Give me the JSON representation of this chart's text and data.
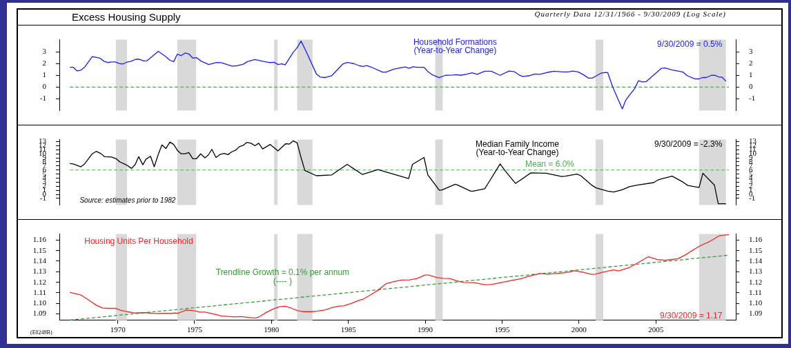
{
  "chart_data": [
    {
      "type": "line",
      "title": "Excess Housing Supply",
      "subtitle": "Quarterly Data 12/31/1966 - 9/30/2009 (Log Scale)",
      "series": [
        {
          "name": "Household Formations",
          "color": "#1a1aff",
          "x": [
            1966.88,
            1967.1,
            1967.35,
            1967.6,
            1967.84,
            1968.34,
            1968.84,
            1969.1,
            1969.34,
            1969.6,
            1969.84,
            1970.09,
            1970.34,
            1970.59,
            1970.84,
            1971.17,
            1971.39,
            1971.68,
            1971.89,
            1972.26,
            1972.63,
            1973.09,
            1973.39,
            1973.64,
            1973.87,
            1974.12,
            1974.38,
            1974.62,
            1974.89,
            1975.12,
            1975.43,
            1975.92,
            1976.42,
            1976.76,
            1977.42,
            1977.76,
            1978.17,
            1978.43,
            1978.92,
            1979.42,
            1979.84,
            1980.17,
            1980.42,
            1980.67,
            1980.89,
            1981.42,
            1981.67,
            1981.92,
            1982.17,
            1982.92,
            1983.17,
            1983.5,
            1983.92,
            1984.67,
            1984.95,
            1985.34,
            1985.72,
            1985.96,
            1986.2,
            1986.5,
            1987.22,
            1987.45,
            1987.95,
            1988.45,
            1988.7,
            1988.95,
            1989.2,
            1989.45,
            1989.92,
            1990.2,
            1990.45,
            1990.9,
            1991.32,
            1991.79,
            1992.04,
            1992.29,
            1992.7,
            1993.04,
            1993.37,
            1993.87,
            1994.29,
            1994.87,
            1995.45,
            1995.78,
            1996.12,
            1996.36,
            1996.78,
            1997.12,
            1997.45,
            1997.95,
            1998.37,
            1998.95,
            1999.28,
            1999.62,
            1999.95,
            2000.28,
            2000.62,
            2000.86,
            2001.11,
            2001.45,
            2001.7,
            2001.87,
            2002.2,
            2002.53,
            2002.82,
            2003.03,
            2003.29,
            2003.62,
            2003.87,
            2004.12,
            2004.37,
            2004.79,
            2005.36,
            2005.61,
            2006.03,
            2006.45,
            2006.78,
            2007.03,
            2007.53,
            2007.81,
            2008.03,
            2008.28,
            2008.62,
            2008.87,
            2009.12,
            2009.31,
            2009.56
          ],
          "values": [
            1.7,
            1.7,
            1.38,
            1.45,
            1.7,
            2.61,
            2.47,
            2.21,
            2.1,
            2.15,
            2.15,
            2.02,
            1.98,
            2.13,
            2.19,
            2.38,
            2.38,
            2.24,
            2.25,
            2.64,
            3.06,
            2.64,
            2.29,
            2.18,
            2.81,
            2.69,
            2.91,
            2.83,
            2.47,
            2.52,
            2.21,
            1.93,
            2.1,
            2.08,
            1.8,
            1.82,
            1.96,
            2.18,
            2.35,
            2.21,
            2.1,
            2.12,
            1.93,
            1.99,
            1.9,
            2.99,
            3.37,
            3.93,
            3.27,
            1.12,
            0.86,
            0.82,
            0.98,
            2.01,
            2.1,
            2.01,
            1.82,
            1.77,
            1.84,
            1.7,
            1.28,
            1.28,
            1.53,
            1.67,
            1.72,
            1.61,
            1.74,
            1.69,
            1.69,
            1.3,
            1.06,
            0.81,
            1.01,
            1.03,
            1.06,
            1.01,
            1.11,
            1.22,
            1.09,
            1.36,
            1.36,
            1.01,
            1.37,
            1.33,
            1.03,
            0.9,
            0.98,
            1.12,
            1.09,
            1.26,
            1.36,
            1.3,
            1.3,
            1.37,
            1.3,
            1.06,
            0.77,
            0.77,
            0.95,
            1.2,
            1.25,
            1.23,
            0.0,
            -1.0,
            -1.86,
            -1.15,
            -0.68,
            -0.13,
            0.55,
            0.44,
            0.47,
            0.95,
            1.61,
            1.63,
            1.47,
            1.37,
            1.28,
            0.98,
            0.71,
            0.7,
            0.82,
            0.82,
            1.01,
            1.0,
            0.85,
            0.85,
            0.5
          ]
        }
      ],
      "xlim": [
        1966.2,
        2010.2
      ],
      "xticks": [
        1970,
        1975,
        1980,
        1985,
        1990,
        1995,
        2000,
        2005
      ],
      "ylim": [
        -2,
        4.05
      ],
      "yticks": [
        -1,
        0,
        1,
        2,
        3
      ],
      "y2lim": [
        -2,
        4.05
      ],
      "y2ticks": [
        -1,
        0,
        1,
        2,
        3
      ],
      "tick_labels": "y",
      "marker": "none",
      "bands": [
        {
          "axis": "x",
          "from": 1969.87,
          "to": 1970.6,
          "color": "#d9d9d9"
        },
        {
          "axis": "x",
          "from": 1973.87,
          "to": 1975.1,
          "color": "#d9d9d9"
        },
        {
          "axis": "x",
          "from": 1980.17,
          "to": 1980.4,
          "color": "#d9d9d9"
        },
        {
          "axis": "x",
          "from": 1981.67,
          "to": 1982.67,
          "color": "#d9d9d9"
        },
        {
          "axis": "x",
          "from": 1990.65,
          "to": 1991.14,
          "color": "#d9d9d9"
        },
        {
          "axis": "x",
          "from": 2001.08,
          "to": 2001.58,
          "color": "#d9d9d9"
        },
        {
          "axis": "x",
          "from": 2007.81,
          "to": 2009.56,
          "color": "#d9d9d9"
        }
      ],
      "ref_lines": [
        {
          "axis": "y",
          "value": 0,
          "color": "#4caf50",
          "line_style": "dashed"
        }
      ],
      "annotations": [
        "(Year-to-Year Change)",
        "9/30/2009 = 0.5%"
      ]
    },
    {
      "type": "line",
      "series": [
        {
          "name": "Median Family Income",
          "color": "#000000",
          "x": [
            1966.88,
            1967.1,
            1967.6,
            1967.84,
            1968.34,
            1968.59,
            1968.89,
            1969.13,
            1969.6,
            1969.89,
            1970.14,
            1970.59,
            1970.9,
            1971.14,
            1971.36,
            1971.63,
            1971.84,
            1972.13,
            1972.37,
            1972.64,
            1972.87,
            1973.13,
            1973.39,
            1973.64,
            1973.87,
            1974.12,
            1974.38,
            1974.62,
            1974.88,
            1975.12,
            1975.39,
            1975.67,
            1975.89,
            1976.12,
            1976.39,
            1976.68,
            1976.92,
            1977.17,
            1977.42,
            1977.67,
            1977.92,
            1978.17,
            1978.39,
            1978.67,
            1978.92,
            1979.17,
            1979.42,
            1979.92,
            1980.42,
            1980.92,
            1981.17,
            1981.42,
            1981.67,
            1981.92,
            1982.17,
            1982.92,
            1983.92,
            1984.92,
            1985.92,
            1986.92,
            1987.92,
            1988.92,
            1989.17,
            1989.92,
            1990.17,
            1990.92,
            1991.09,
            1991.95,
            1992.12,
            1992.95,
            1993.12,
            1993.87,
            1994.17,
            1994.87,
            1995.2,
            1995.87,
            1996.87,
            1997.87,
            1998.87,
            1999.12,
            1999.87,
            2000.12,
            2000.86,
            2001.11,
            2001.87,
            2002.25,
            2002.78,
            2003.29,
            2003.78,
            2004.86,
            2005.11,
            2005.36,
            2006.06,
            2006.78,
            2007.08,
            2007.81,
            2008.06,
            2008.81,
            2009.06,
            2009.56
          ],
          "values": [
            7.6,
            7.5,
            6.8,
            7.5,
            10.0,
            10.6,
            10.1,
            9.3,
            9.2,
            8.8,
            8.0,
            7.2,
            6.4,
            7.4,
            9.3,
            7.3,
            8.7,
            9.4,
            6.8,
            9.9,
            12.2,
            11.3,
            12.9,
            12.3,
            10.9,
            10.0,
            10.0,
            10.3,
            8.8,
            8.8,
            10.0,
            9.0,
            9.7,
            11.1,
            9.1,
            9.9,
            10.1,
            9.8,
            10.5,
            10.9,
            11.8,
            12.1,
            12.8,
            12.6,
            12.0,
            12.6,
            11.2,
            12.3,
            10.7,
            12.5,
            12.4,
            13.2,
            12.7,
            9.1,
            5.9,
            4.6,
            4.8,
            7.4,
            4.9,
            6.1,
            5.0,
            3.9,
            7.4,
            9.1,
            4.8,
            1.0,
            1.1,
            2.5,
            2.3,
            0.8,
            0.8,
            1.4,
            3.2,
            7.5,
            5.8,
            2.7,
            5.3,
            5.2,
            4.4,
            4.5,
            5.0,
            4.6,
            2.2,
            1.6,
            0.8,
            0.6,
            1.1,
            1.9,
            2.3,
            2.9,
            3.5,
            3.8,
            4.5,
            3.0,
            2.2,
            1.7,
            5.2,
            2.3,
            -2.3,
            -2.3
          ]
        }
      ],
      "xlim": [
        1966.2,
        2010.2
      ],
      "xticks": [
        1970,
        1975,
        1980,
        1985,
        1990,
        1995,
        2000,
        2005
      ],
      "ylim": [
        -2.6,
        13.5
      ],
      "yticks": [
        -1,
        0,
        1,
        2,
        3,
        4,
        5,
        6,
        7,
        8,
        9,
        10,
        11,
        12,
        13
      ],
      "y2lim": [
        -2.6,
        13.5
      ],
      "y2ticks": [
        -1,
        0,
        1,
        2,
        3,
        4,
        5,
        6,
        7,
        8,
        9,
        10,
        11,
        12,
        13
      ],
      "tick_labels": "y",
      "marker": "none",
      "bands": [
        {
          "axis": "x",
          "from": 1969.87,
          "to": 1970.6,
          "color": "#d9d9d9"
        },
        {
          "axis": "x",
          "from": 1973.87,
          "to": 1975.1,
          "color": "#d9d9d9"
        },
        {
          "axis": "x",
          "from": 1980.17,
          "to": 1980.4,
          "color": "#d9d9d9"
        },
        {
          "axis": "x",
          "from": 1981.67,
          "to": 1982.67,
          "color": "#d9d9d9"
        },
        {
          "axis": "x",
          "from": 1990.65,
          "to": 1991.14,
          "color": "#d9d9d9"
        },
        {
          "axis": "x",
          "from": 2001.08,
          "to": 2001.58,
          "color": "#d9d9d9"
        },
        {
          "axis": "x",
          "from": 2007.81,
          "to": 2009.56,
          "color": "#d9d9d9"
        }
      ],
      "ref_lines": [
        {
          "axis": "y",
          "value": 6.0,
          "label": "Mean = 6.0%",
          "color": "#4caf50",
          "line_style": "dashed"
        }
      ],
      "annotations": [
        "(Year-to-Year Change)",
        "9/30/2009 = -2.3%",
        "Source: estimates prior to 1982"
      ]
    },
    {
      "type": "line",
      "series": [
        {
          "name": "Housing Units Per Household",
          "color": "#ff2020",
          "x": [
            1966.88,
            1967.6,
            1968.1,
            1968.6,
            1969.0,
            1969.34,
            1969.84,
            1970.17,
            1970.59,
            1971.09,
            1971.51,
            1971.84,
            1972.26,
            1972.67,
            1973.09,
            1973.43,
            1973.68,
            1973.9,
            1974.18,
            1974.43,
            1974.68,
            1975.09,
            1975.34,
            1975.68,
            1976.09,
            1976.42,
            1976.76,
            1977.26,
            1977.59,
            1978.01,
            1978.34,
            1978.76,
            1979.01,
            1979.26,
            1979.68,
            1980.09,
            1980.51,
            1980.89,
            1981.18,
            1981.67,
            1982.01,
            1982.59,
            1983.01,
            1983.46,
            1984.01,
            1984.43,
            1984.68,
            1985.18,
            1985.68,
            1985.93,
            1986.43,
            1986.93,
            1987.43,
            1987.96,
            1988.46,
            1988.97,
            1989.47,
            1989.98,
            1990.23,
            1990.73,
            1991.15,
            1991.57,
            1992.08,
            1992.5,
            1993.17,
            1993.93,
            1994.35,
            1995.02,
            1995.52,
            1996.19,
            1996.61,
            1997.45,
            1997.95,
            1998.54,
            1999.22,
            1999.72,
            2000.23,
            2000.82,
            2001.07,
            2001.57,
            2002.24,
            2002.58,
            2003.25,
            2003.76,
            2004.51,
            2005.1,
            2005.6,
            2006.44,
            2006.95,
            2007.29,
            2007.87,
            2008.46,
            2008.8,
            2009.13,
            2009.76
          ],
          "values": [
            1.1106,
            1.108,
            1.1033,
            1.0983,
            1.0957,
            1.0953,
            1.0953,
            1.0936,
            1.0922,
            1.091,
            1.0912,
            1.0912,
            1.0906,
            1.0904,
            1.0906,
            1.0904,
            1.091,
            1.0906,
            1.0922,
            1.0936,
            1.0936,
            1.0928,
            1.0918,
            1.0918,
            1.0904,
            1.0894,
            1.088,
            1.0876,
            1.0872,
            1.0876,
            1.087,
            1.0862,
            1.0862,
            1.0878,
            1.0916,
            1.0945,
            1.0969,
            1.0973,
            1.0961,
            1.0932,
            1.0922,
            1.0922,
            1.0928,
            1.0938,
            1.0963,
            1.0975,
            1.0977,
            1.0999,
            1.1029,
            1.1038,
            1.108,
            1.1125,
            1.1185,
            1.1207,
            1.1221,
            1.1223,
            1.1236,
            1.1268,
            1.1268,
            1.1246,
            1.1238,
            1.1236,
            1.1213,
            1.1199,
            1.1197,
            1.1176,
            1.118,
            1.12,
            1.1215,
            1.1232,
            1.1252,
            1.1283,
            1.1277,
            1.1283,
            1.1293,
            1.131,
            1.1297,
            1.1275,
            1.1277,
            1.1297,
            1.1318,
            1.1307,
            1.1338,
            1.1379,
            1.1442,
            1.1416,
            1.1408,
            1.1424,
            1.1461,
            1.1494,
            1.1545,
            1.1584,
            1.1612,
            1.1641,
            1.1652
          ]
        },
        {
          "type": "line",
          "color": "#3a9a3a",
          "line_style": "dashed",
          "x": [
            1966.88,
            2009.76
          ],
          "values": [
            1.0842,
            1.1457
          ]
        }
      ],
      "xlim": [
        1966.2,
        2010.2
      ],
      "xticks": [
        1970,
        1975,
        1980,
        1985,
        1990,
        1995,
        2000,
        2005
      ],
      "ylim": [
        1.084,
        1.1657
      ],
      "yticks": [
        1.09,
        {
          "value": 1.1,
          "label": "1.10"
        },
        1.11,
        1.12,
        1.13,
        1.14,
        1.15,
        1.16
      ],
      "y2lim": [
        1.084,
        1.1657
      ],
      "y2ticks": [
        1.09,
        {
          "value": 1.1,
          "label": "1.10"
        },
        1.11,
        1.12,
        1.13,
        1.14,
        1.15,
        1.16
      ],
      "marker": "none",
      "bands": [
        {
          "axis": "x",
          "from": 1969.87,
          "to": 1970.6,
          "color": "#d9d9d9"
        },
        {
          "axis": "x",
          "from": 1973.87,
          "to": 1975.1,
          "color": "#d9d9d9"
        },
        {
          "axis": "x",
          "from": 1980.17,
          "to": 1980.4,
          "color": "#d9d9d9"
        },
        {
          "axis": "x",
          "from": 1981.67,
          "to": 1982.67,
          "color": "#d9d9d9"
        },
        {
          "axis": "x",
          "from": 1990.65,
          "to": 1991.14,
          "color": "#d9d9d9"
        },
        {
          "axis": "x",
          "from": 2001.08,
          "to": 2001.58,
          "color": "#d9d9d9"
        },
        {
          "axis": "x",
          "from": 2007.81,
          "to": 2009.56,
          "color": "#d9d9d9"
        }
      ],
      "annotations": [
        "Trendline Growth = 0.1% per annum",
        "(---- )",
        "9/30/2009 = 1.17",
        "(E0248B)"
      ]
    }
  ]
}
